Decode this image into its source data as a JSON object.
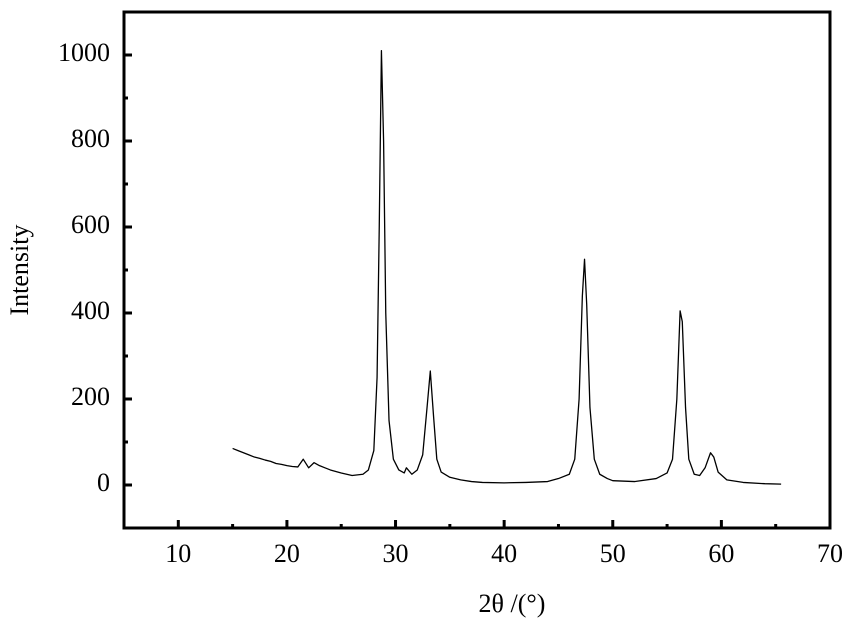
{
  "chart_data": {
    "type": "line",
    "x_label": "2θ /(°)",
    "y_label": "Intensity",
    "color": "#000000",
    "xlim": [
      5,
      70
    ],
    "ylim": [
      -100,
      1100
    ],
    "xticks": [
      10,
      20,
      30,
      40,
      50,
      60,
      70
    ],
    "yticks": [
      0,
      200,
      400,
      600,
      800,
      1000
    ],
    "xminorticks": [
      15,
      25,
      35,
      45,
      55,
      65
    ],
    "yminorticks": [
      100,
      300,
      500,
      700,
      900
    ],
    "x": [
      15,
      15.5,
      16,
      16.5,
      17,
      17.5,
      18,
      18.5,
      19,
      19.5,
      20,
      20.5,
      21,
      21.5,
      22,
      22.5,
      23,
      23.5,
      24,
      25,
      26,
      27,
      27.5,
      28,
      28.3,
      28.5,
      28.7,
      28.9,
      29.1,
      29.4,
      29.8,
      30.3,
      30.8,
      31,
      31.5,
      32,
      32.5,
      32.9,
      33.2,
      33.5,
      33.8,
      34.2,
      35,
      36,
      37,
      38,
      40,
      42,
      44,
      45,
      46,
      46.5,
      46.9,
      47.2,
      47.4,
      47.6,
      47.9,
      48.3,
      48.8,
      49.5,
      50,
      52,
      54,
      55,
      55.5,
      55.9,
      56.2,
      56.4,
      56.7,
      57,
      57.5,
      58,
      58.5,
      59,
      59.3,
      59.7,
      60.5,
      62,
      64,
      65.5
    ],
    "values": [
      85,
      80,
      75,
      70,
      65,
      62,
      58,
      55,
      50,
      48,
      45,
      43,
      42,
      60,
      40,
      52,
      45,
      40,
      35,
      28,
      22,
      25,
      35,
      80,
      250,
      600,
      1010,
      800,
      400,
      150,
      60,
      35,
      28,
      40,
      25,
      35,
      70,
      180,
      265,
      160,
      60,
      30,
      18,
      12,
      8,
      6,
      5,
      6,
      8,
      15,
      25,
      60,
      200,
      440,
      525,
      420,
      180,
      60,
      25,
      15,
      10,
      8,
      15,
      28,
      60,
      200,
      405,
      380,
      180,
      60,
      25,
      22,
      40,
      75,
      65,
      30,
      12,
      6,
      3,
      2
    ]
  }
}
